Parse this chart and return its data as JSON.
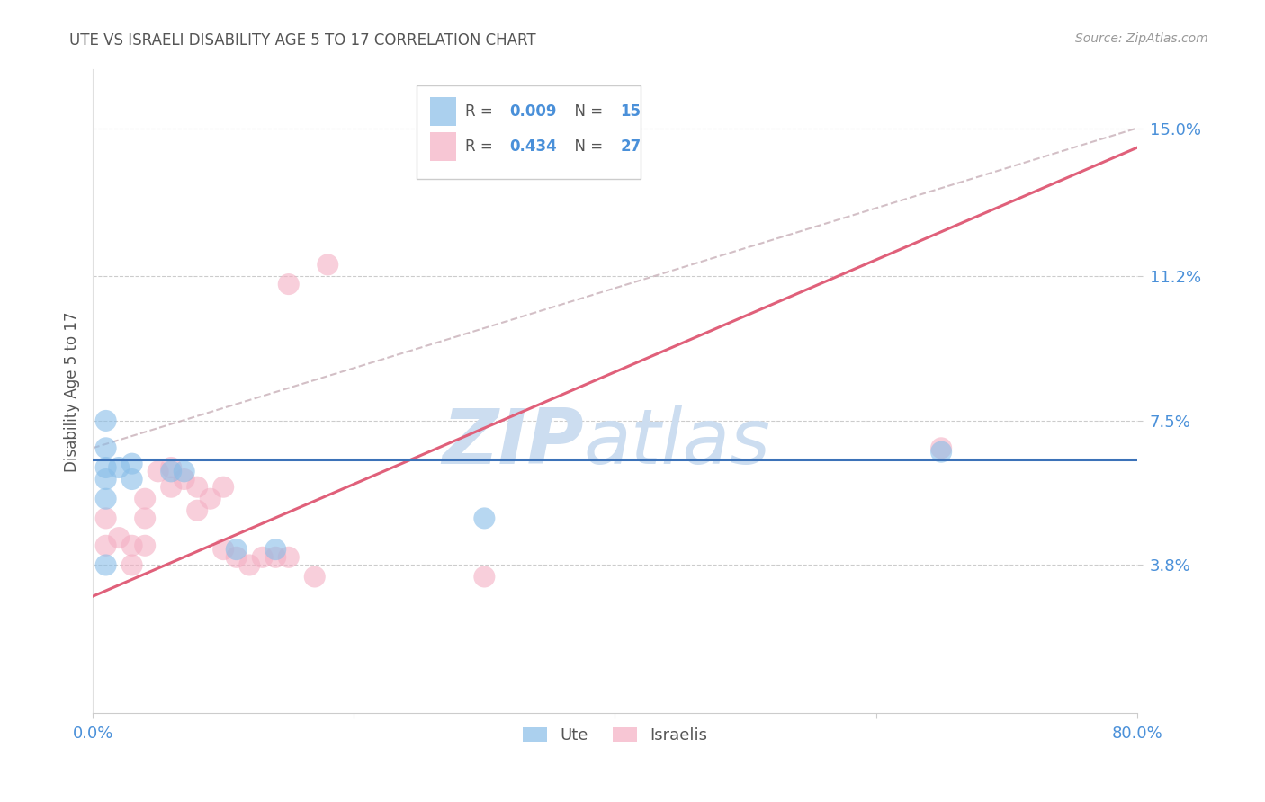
{
  "title": "UTE VS ISRAELI DISABILITY AGE 5 TO 17 CORRELATION CHART",
  "source": "Source: ZipAtlas.com",
  "ylabel": "Disability Age 5 to 17",
  "xlim": [
    0.0,
    0.8
  ],
  "ylim": [
    0.0,
    0.165
  ],
  "xticks": [
    0.0,
    0.2,
    0.4,
    0.6,
    0.8
  ],
  "xtick_labels": [
    "0.0%",
    "",
    "",
    "",
    "80.0%"
  ],
  "ytick_vals": [
    0.038,
    0.075,
    0.112,
    0.15
  ],
  "ytick_labels": [
    "3.8%",
    "7.5%",
    "11.2%",
    "15.0%"
  ],
  "ute_R": 0.009,
  "ute_N": 15,
  "israeli_R": 0.434,
  "israeli_N": 27,
  "ute_color": "#88bde8",
  "israeli_color": "#f4afc3",
  "ute_line_color": "#3c72b8",
  "israeli_line_color": "#e0607a",
  "dashed_line_color": "#c8b0b8",
  "watermark_color": "#ccddf0",
  "ute_points_x": [
    0.01,
    0.01,
    0.01,
    0.01,
    0.01,
    0.02,
    0.03,
    0.03,
    0.06,
    0.07,
    0.11,
    0.14,
    0.3,
    0.65,
    0.01
  ],
  "ute_points_y": [
    0.075,
    0.068,
    0.063,
    0.06,
    0.055,
    0.063,
    0.064,
    0.06,
    0.062,
    0.062,
    0.042,
    0.042,
    0.05,
    0.067,
    0.038
  ],
  "israeli_points_x": [
    0.01,
    0.01,
    0.02,
    0.03,
    0.03,
    0.04,
    0.04,
    0.04,
    0.05,
    0.06,
    0.06,
    0.07,
    0.08,
    0.08,
    0.09,
    0.1,
    0.1,
    0.11,
    0.12,
    0.13,
    0.14,
    0.15,
    0.15,
    0.17,
    0.3,
    0.65,
    0.18
  ],
  "israeli_points_y": [
    0.05,
    0.043,
    0.045,
    0.043,
    0.038,
    0.055,
    0.05,
    0.043,
    0.062,
    0.063,
    0.058,
    0.06,
    0.058,
    0.052,
    0.055,
    0.042,
    0.058,
    0.04,
    0.038,
    0.04,
    0.04,
    0.11,
    0.04,
    0.035,
    0.035,
    0.068,
    0.115
  ],
  "ute_line_y0": 0.065,
  "ute_line_y1": 0.065,
  "isr_line_x0": 0.0,
  "isr_line_y0": 0.03,
  "isr_line_x1": 0.8,
  "isr_line_y1": 0.145,
  "dash_line_x0": 0.0,
  "dash_line_y0": 0.068,
  "dash_line_x1": 0.8,
  "dash_line_y1": 0.15,
  "background_color": "#ffffff",
  "grid_color": "#cccccc",
  "legend_R_color": "#3c72b8",
  "legend_N_color": "#3c72b8"
}
